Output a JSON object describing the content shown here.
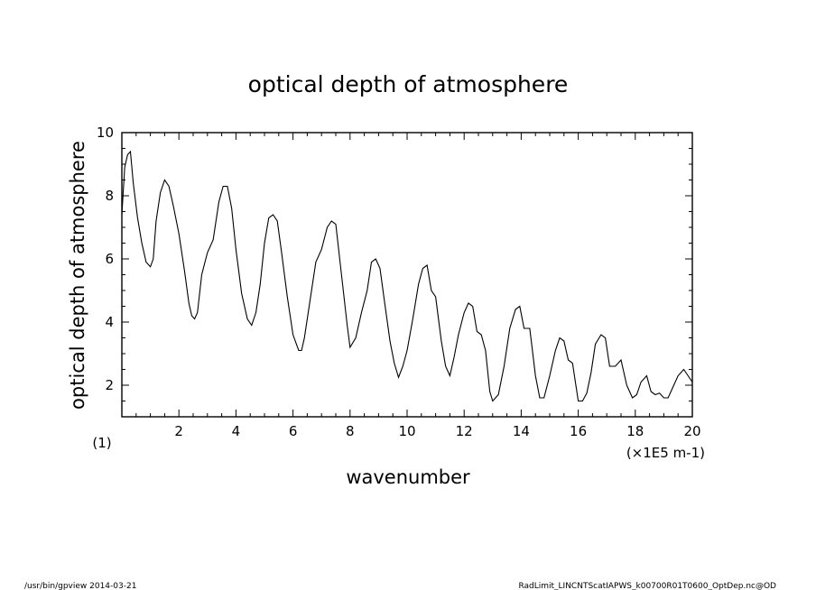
{
  "footer": {
    "left": "/usr/bin/gpview   2014-03-21",
    "right": "RadLimit_LINCNTScatIAPWS_k00700R01T0600_OptDep.nc@OD"
  },
  "chart_data": {
    "type": "line",
    "title": "optical depth of atmosphere",
    "xlabel": "wavenumber",
    "ylabel": "optical depth of atmosphere",
    "x_unit_label": "(×1E5 m-1)",
    "y_unit_label": "(1)",
    "xlim": [
      0,
      20
    ],
    "ylim": [
      1,
      10
    ],
    "x_ticks": [
      2,
      4,
      6,
      8,
      10,
      12,
      14,
      16,
      18,
      20
    ],
    "x_tick_labels": [
      "2",
      "4",
      "6",
      "8",
      "10",
      "12",
      "14",
      "16",
      "18",
      "20"
    ],
    "y_ticks": [
      2,
      4,
      6,
      8,
      10
    ],
    "y_tick_labels": [
      "2",
      "4",
      "6",
      "8",
      "10"
    ],
    "grid": false,
    "line_color": "#000000",
    "series": [
      {
        "x": [
          0,
          0.1,
          0.2,
          0.3,
          0.4,
          0.55,
          0.7,
          0.85,
          1.0,
          1.1,
          1.2,
          1.35,
          1.5,
          1.65,
          1.8,
          2.0,
          2.2,
          2.35,
          2.45,
          2.55,
          2.65,
          2.8,
          3.0,
          3.2,
          3.4,
          3.55,
          3.7,
          3.85,
          4.0,
          4.2,
          4.4,
          4.55,
          4.7,
          4.85,
          5.0,
          5.15,
          5.3,
          5.45,
          5.6,
          5.8,
          6.0,
          6.2,
          6.3,
          6.4,
          6.6,
          6.8,
          7.0,
          7.2,
          7.35,
          7.5,
          7.7,
          7.9,
          8.0,
          8.2,
          8.4,
          8.6,
          8.75,
          8.9,
          9.05,
          9.2,
          9.4,
          9.55,
          9.7,
          9.85,
          10.0,
          10.2,
          10.4,
          10.55,
          10.7,
          10.85,
          11.0,
          11.2,
          11.35,
          11.5,
          11.65,
          11.8,
          12.0,
          12.15,
          12.3,
          12.45,
          12.6,
          12.75,
          12.9,
          13.0,
          13.2,
          13.4,
          13.6,
          13.8,
          13.95,
          14.1,
          14.3,
          14.5,
          14.65,
          14.8,
          15.0,
          15.2,
          15.35,
          15.5,
          15.65,
          15.8,
          16.0,
          16.15,
          16.3,
          16.45,
          16.6,
          16.8,
          16.95,
          17.1,
          17.3,
          17.5,
          17.7,
          17.9,
          18.05,
          18.2,
          18.4,
          18.55,
          18.7,
          18.85,
          19.0,
          19.15,
          19.3,
          19.5,
          19.7,
          19.85,
          20.0
        ],
        "y": [
          7.4,
          8.9,
          9.3,
          9.4,
          8.4,
          7.3,
          6.5,
          5.9,
          5.75,
          6.0,
          7.2,
          8.1,
          8.5,
          8.3,
          7.7,
          6.8,
          5.6,
          4.6,
          4.2,
          4.1,
          4.3,
          5.5,
          6.2,
          6.6,
          7.8,
          8.3,
          8.3,
          7.6,
          6.3,
          4.9,
          4.1,
          3.9,
          4.3,
          5.2,
          6.5,
          7.3,
          7.4,
          7.2,
          6.2,
          4.8,
          3.6,
          3.1,
          3.1,
          3.5,
          4.7,
          5.9,
          6.3,
          7.0,
          7.2,
          7.1,
          5.5,
          3.9,
          3.2,
          3.5,
          4.3,
          5.0,
          5.9,
          6.0,
          5.7,
          4.7,
          3.4,
          2.7,
          2.25,
          2.6,
          3.1,
          4.1,
          5.2,
          5.7,
          5.8,
          5.0,
          4.8,
          3.4,
          2.6,
          2.3,
          2.9,
          3.6,
          4.3,
          4.6,
          4.5,
          3.7,
          3.6,
          3.1,
          1.8,
          1.5,
          1.7,
          2.6,
          3.8,
          4.4,
          4.5,
          3.8,
          3.8,
          2.3,
          1.6,
          1.6,
          2.3,
          3.1,
          3.5,
          3.4,
          2.8,
          2.7,
          1.5,
          1.5,
          1.75,
          2.4,
          3.3,
          3.6,
          3.5,
          2.6,
          2.6,
          2.8,
          2.0,
          1.6,
          1.7,
          2.1,
          2.3,
          1.8,
          1.7,
          1.75,
          1.6,
          1.6,
          1.9,
          2.3,
          2.5,
          2.3,
          2.1
        ]
      }
    ]
  }
}
